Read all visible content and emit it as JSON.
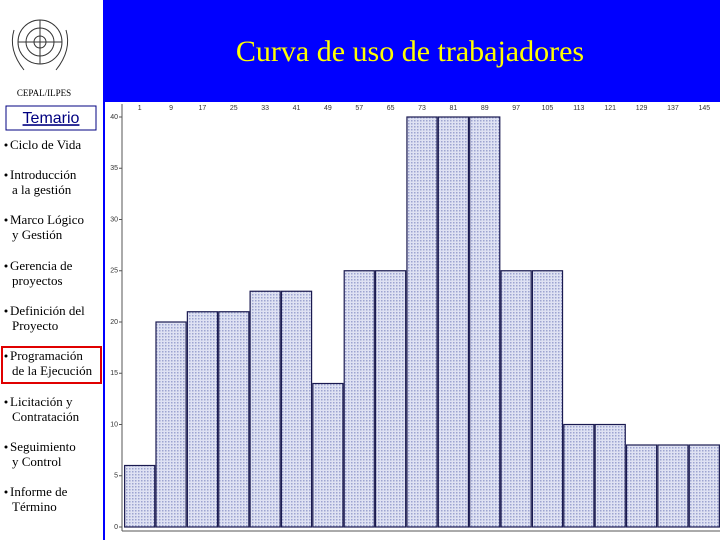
{
  "header": {
    "title": "Curva de uso de trabajadores",
    "org": "CEPAL/ILPES"
  },
  "sidebar": {
    "heading": "Temario",
    "items": [
      [
        "Ciclo de Vida"
      ],
      [
        "Introducción",
        "a la gestión"
      ],
      [
        "Marco Lógico",
        "y Gestión"
      ],
      [
        "Gerencia de",
        "proyectos"
      ],
      [
        "Definición del",
        "Proyecto"
      ],
      [
        "Programación",
        "de la Ejecución"
      ],
      [
        "Licitación y",
        "Contratación"
      ],
      [
        "Seguimiento",
        "y Control"
      ],
      [
        "Informe de",
        "Término"
      ]
    ]
  },
  "chart_data": {
    "type": "bar",
    "categories": [
      "1",
      "9",
      "17",
      "25",
      "33",
      "41",
      "49",
      "57",
      "65",
      "73",
      "81",
      "89",
      "97",
      "105",
      "113",
      "121",
      "129",
      "137",
      "145"
    ],
    "values": [
      6,
      20,
      21,
      21,
      23,
      23,
      14,
      25,
      25,
      40,
      40,
      40,
      25,
      25,
      10,
      10,
      8,
      8,
      8
    ],
    "color": "#c9cde8",
    "ylim": [
      0,
      40
    ],
    "yticks": [
      0,
      5,
      10,
      15,
      20,
      25,
      30,
      35,
      40
    ]
  }
}
